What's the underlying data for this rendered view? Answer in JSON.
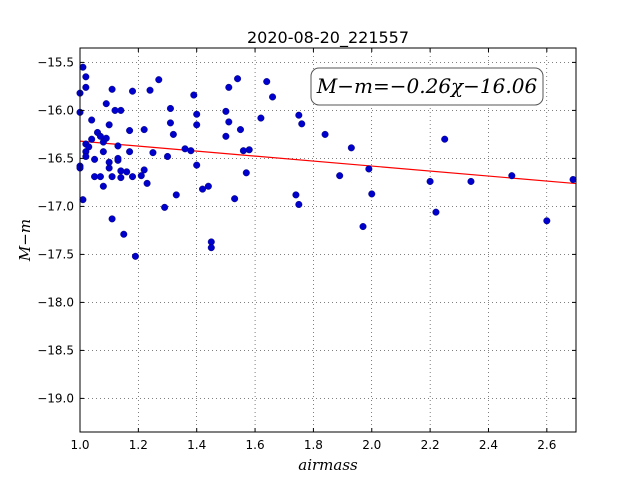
{
  "chart_data": {
    "type": "scatter",
    "title": "2020-08-20_221557",
    "xlabel": "airmass",
    "ylabel": "M−m",
    "xlim": [
      1.0,
      2.7
    ],
    "ylim": [
      -19.35,
      -15.35
    ],
    "xticks": [
      1.0,
      1.2,
      1.4,
      1.6,
      1.8,
      2.0,
      2.2,
      2.4,
      2.6
    ],
    "xtick_labels": [
      "1.0",
      "1.2",
      "1.4",
      "1.6",
      "1.8",
      "2.0",
      "2.2",
      "2.4",
      "2.6"
    ],
    "yticks": [
      -15.5,
      -16.0,
      -16.5,
      -17.0,
      -17.5,
      -18.0,
      -18.5,
      -19.0
    ],
    "ytick_labels": [
      "−15.5",
      "−16.0",
      "−16.5",
      "−17.0",
      "−17.5",
      "−18.0",
      "−18.5",
      "−19.0"
    ],
    "grid": true,
    "annotation": "M−m=−0.26χ−16.06",
    "fit_line": {
      "slope": -0.26,
      "intercept": -16.06,
      "color": "#ff0000"
    },
    "point_color": "#0000cc",
    "points": [
      [
        1.0,
        -15.82
      ],
      [
        1.0,
        -16.02
      ],
      [
        1.0,
        -16.58
      ],
      [
        1.0,
        -16.6
      ],
      [
        1.01,
        -15.55
      ],
      [
        1.01,
        -16.93
      ],
      [
        1.02,
        -15.65
      ],
      [
        1.02,
        -15.76
      ],
      [
        1.02,
        -16.35
      ],
      [
        1.02,
        -16.43
      ],
      [
        1.02,
        -16.48
      ],
      [
        1.03,
        -16.38
      ],
      [
        1.04,
        -16.1
      ],
      [
        1.04,
        -16.3
      ],
      [
        1.05,
        -16.51
      ],
      [
        1.05,
        -16.69
      ],
      [
        1.06,
        -16.23
      ],
      [
        1.07,
        -16.27
      ],
      [
        1.07,
        -16.69
      ],
      [
        1.08,
        -16.33
      ],
      [
        1.08,
        -16.43
      ],
      [
        1.08,
        -16.79
      ],
      [
        1.09,
        -16.29
      ],
      [
        1.09,
        -15.93
      ],
      [
        1.1,
        -16.6
      ],
      [
        1.1,
        -16.15
      ],
      [
        1.1,
        -16.54
      ],
      [
        1.11,
        -15.78
      ],
      [
        1.11,
        -16.69
      ],
      [
        1.11,
        -17.13
      ],
      [
        1.12,
        -16.0
      ],
      [
        1.13,
        -16.37
      ],
      [
        1.13,
        -16.52
      ],
      [
        1.13,
        -16.5
      ],
      [
        1.14,
        -16.63
      ],
      [
        1.14,
        -16.7
      ],
      [
        1.14,
        -16.0
      ],
      [
        1.15,
        -17.29
      ],
      [
        1.16,
        -16.64
      ],
      [
        1.17,
        -16.21
      ],
      [
        1.17,
        -16.43
      ],
      [
        1.18,
        -16.69
      ],
      [
        1.18,
        -15.8
      ],
      [
        1.19,
        -17.52
      ],
      [
        1.21,
        -16.68
      ],
      [
        1.22,
        -16.2
      ],
      [
        1.22,
        -16.62
      ],
      [
        1.23,
        -16.76
      ],
      [
        1.24,
        -15.79
      ],
      [
        1.25,
        -16.44
      ],
      [
        1.27,
        -15.68
      ],
      [
        1.29,
        -17.01
      ],
      [
        1.3,
        -16.48
      ],
      [
        1.31,
        -16.13
      ],
      [
        1.31,
        -15.98
      ],
      [
        1.32,
        -16.25
      ],
      [
        1.33,
        -16.88
      ],
      [
        1.36,
        -16.4
      ],
      [
        1.38,
        -16.42
      ],
      [
        1.39,
        -15.84
      ],
      [
        1.4,
        -16.04
      ],
      [
        1.4,
        -16.15
      ],
      [
        1.4,
        -16.57
      ],
      [
        1.42,
        -16.82
      ],
      [
        1.44,
        -16.79
      ],
      [
        1.45,
        -17.37
      ],
      [
        1.45,
        -17.43
      ],
      [
        1.5,
        -16.27
      ],
      [
        1.5,
        -16.01
      ],
      [
        1.51,
        -16.12
      ],
      [
        1.51,
        -15.76
      ],
      [
        1.53,
        -16.92
      ],
      [
        1.54,
        -15.67
      ],
      [
        1.55,
        -16.2
      ],
      [
        1.56,
        -16.42
      ],
      [
        1.57,
        -16.65
      ],
      [
        1.58,
        -16.41
      ],
      [
        1.62,
        -16.08
      ],
      [
        1.64,
        -15.7
      ],
      [
        1.66,
        -15.86
      ],
      [
        1.74,
        -16.88
      ],
      [
        1.75,
        -16.05
      ],
      [
        1.75,
        -16.98
      ],
      [
        1.76,
        -16.14
      ],
      [
        1.84,
        -16.25
      ],
      [
        1.89,
        -16.68
      ],
      [
        1.93,
        -16.39
      ],
      [
        1.97,
        -17.21
      ],
      [
        1.99,
        -16.61
      ],
      [
        2.0,
        -16.87
      ],
      [
        2.2,
        -16.74
      ],
      [
        2.22,
        -17.06
      ],
      [
        2.25,
        -16.3
      ],
      [
        2.34,
        -16.74
      ],
      [
        2.48,
        -16.68
      ],
      [
        2.6,
        -17.15
      ],
      [
        2.69,
        -16.72
      ]
    ]
  }
}
